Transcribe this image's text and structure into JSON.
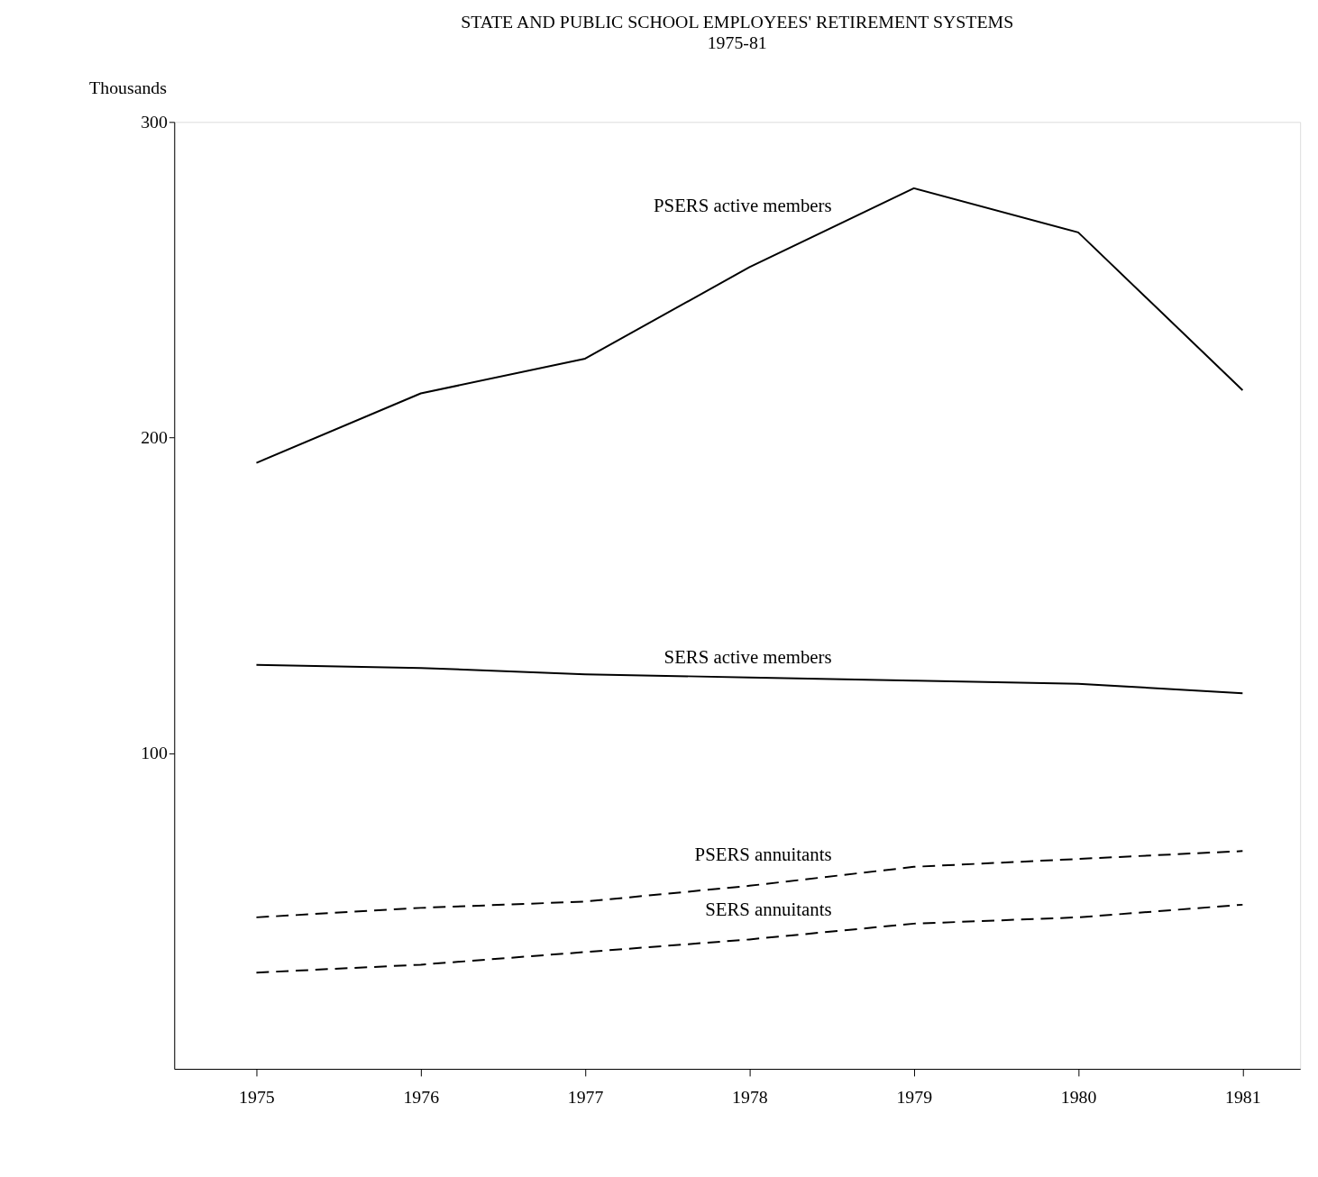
{
  "chart_data": {
    "type": "line",
    "title": "STATE AND PUBLIC SCHOOL EMPLOYEES' RETIREMENT SYSTEMS",
    "subtitle": "1975-81",
    "ylabel": "Thousands",
    "x": [
      1975,
      1976,
      1977,
      1978,
      1979,
      1980,
      1981
    ],
    "xlim": [
      1974.5,
      1981.35
    ],
    "xticks": [
      1975,
      1976,
      1977,
      1978,
      1979,
      1980,
      1981
    ],
    "ylim": [
      0,
      300
    ],
    "yticks": [
      100,
      200,
      300
    ],
    "grid": false,
    "marker": "none",
    "series": [
      {
        "name": "PSERS active members",
        "color": "#000000",
        "line_style": "solid",
        "values": [
          192,
          214,
          225,
          254,
          279,
          265,
          215
        ]
      },
      {
        "name": "SERS active members",
        "color": "#000000",
        "line_style": "solid",
        "values": [
          128,
          127,
          125,
          124,
          123,
          122,
          119
        ]
      },
      {
        "name": "PSERS annuitants",
        "color": "#000000",
        "line_style": "dashed",
        "values": [
          48,
          51,
          53,
          58,
          64,
          66.5,
          69
        ]
      },
      {
        "name": "SERS annuitants",
        "color": "#000000",
        "line_style": "dashed",
        "values": [
          30.5,
          33,
          37,
          41,
          46,
          48,
          52
        ]
      }
    ]
  }
}
